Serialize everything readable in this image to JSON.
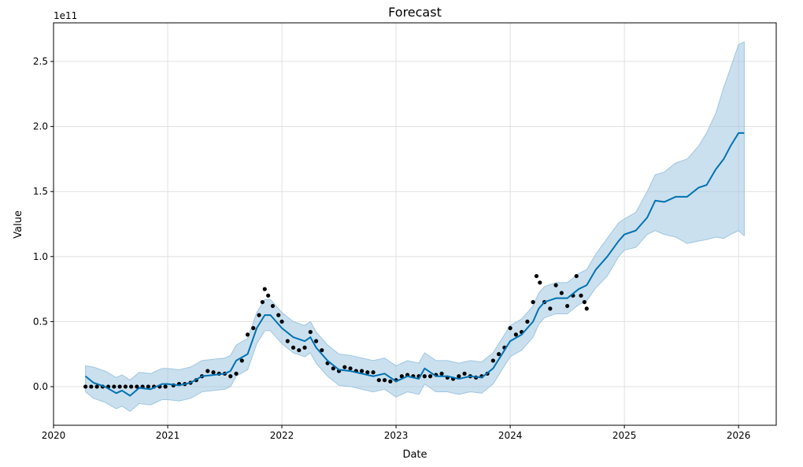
{
  "chart_data": {
    "type": "line",
    "title": "Forecast",
    "xlabel": "Date",
    "ylabel": "Value",
    "y_offset_label": "1e11",
    "y_units_multiplier": 100000000000.0,
    "xlim": [
      2020.0,
      2026.33
    ],
    "ylim": [
      -0.297,
      2.797
    ],
    "x_ticks": [
      "2020",
      "2021",
      "2022",
      "2023",
      "2024",
      "2025",
      "2026"
    ],
    "y_ticks": [
      "0.0",
      "0.5",
      "1.0",
      "1.5",
      "2.0",
      "2.5"
    ],
    "grid": true,
    "colors": {
      "forecast": "#0072b2",
      "band": "#9ec6e0",
      "actual": "#000000",
      "grid": "#e0e0e0"
    },
    "forecast": [
      [
        2020.28,
        0.08,
        -0.04,
        0.16
      ],
      [
        2020.35,
        0.03,
        -0.09,
        0.15
      ],
      [
        2020.45,
        0.0,
        -0.12,
        0.12
      ],
      [
        2020.55,
        -0.05,
        -0.17,
        0.07
      ],
      [
        2020.6,
        -0.03,
        -0.15,
        0.09
      ],
      [
        2020.67,
        -0.07,
        -0.19,
        0.05
      ],
      [
        2020.75,
        -0.01,
        -0.13,
        0.11
      ],
      [
        2020.85,
        -0.02,
        -0.14,
        0.1
      ],
      [
        2020.95,
        0.02,
        -0.1,
        0.14
      ],
      [
        2021.0,
        0.02,
        -0.1,
        0.14
      ],
      [
        2021.1,
        0.01,
        -0.11,
        0.13
      ],
      [
        2021.2,
        0.03,
        -0.09,
        0.15
      ],
      [
        2021.3,
        0.08,
        -0.04,
        0.2
      ],
      [
        2021.4,
        0.09,
        -0.03,
        0.21
      ],
      [
        2021.5,
        0.1,
        -0.02,
        0.22
      ],
      [
        2021.55,
        0.12,
        0.0,
        0.24
      ],
      [
        2021.6,
        0.2,
        0.08,
        0.32
      ],
      [
        2021.7,
        0.25,
        0.13,
        0.37
      ],
      [
        2021.78,
        0.45,
        0.33,
        0.57
      ],
      [
        2021.85,
        0.55,
        0.43,
        0.67
      ],
      [
        2021.9,
        0.55,
        0.43,
        0.67
      ],
      [
        2021.95,
        0.5,
        0.38,
        0.62
      ],
      [
        2022.0,
        0.45,
        0.33,
        0.57
      ],
      [
        2022.1,
        0.38,
        0.26,
        0.5
      ],
      [
        2022.2,
        0.35,
        0.23,
        0.47
      ],
      [
        2022.25,
        0.38,
        0.26,
        0.5
      ],
      [
        2022.3,
        0.3,
        0.18,
        0.42
      ],
      [
        2022.4,
        0.2,
        0.08,
        0.32
      ],
      [
        2022.5,
        0.13,
        0.01,
        0.25
      ],
      [
        2022.6,
        0.12,
        0.0,
        0.24
      ],
      [
        2022.7,
        0.1,
        -0.02,
        0.22
      ],
      [
        2022.8,
        0.08,
        -0.04,
        0.2
      ],
      [
        2022.9,
        0.1,
        -0.02,
        0.22
      ],
      [
        2023.0,
        0.04,
        -0.08,
        0.16
      ],
      [
        2023.1,
        0.08,
        -0.04,
        0.2
      ],
      [
        2023.2,
        0.06,
        -0.06,
        0.18
      ],
      [
        2023.25,
        0.14,
        0.02,
        0.26
      ],
      [
        2023.35,
        0.08,
        -0.04,
        0.2
      ],
      [
        2023.45,
        0.08,
        -0.04,
        0.2
      ],
      [
        2023.55,
        0.06,
        -0.06,
        0.18
      ],
      [
        2023.65,
        0.08,
        -0.04,
        0.2
      ],
      [
        2023.75,
        0.07,
        -0.05,
        0.19
      ],
      [
        2023.85,
        0.14,
        0.02,
        0.26
      ],
      [
        2023.95,
        0.28,
        0.16,
        0.4
      ],
      [
        2024.0,
        0.35,
        0.23,
        0.47
      ],
      [
        2024.1,
        0.4,
        0.28,
        0.52
      ],
      [
        2024.2,
        0.5,
        0.38,
        0.62
      ],
      [
        2024.25,
        0.6,
        0.48,
        0.72
      ],
      [
        2024.3,
        0.65,
        0.53,
        0.77
      ],
      [
        2024.4,
        0.68,
        0.56,
        0.8
      ],
      [
        2024.5,
        0.68,
        0.56,
        0.8
      ],
      [
        2024.6,
        0.75,
        0.63,
        0.87
      ],
      [
        2024.67,
        0.78,
        0.66,
        0.9
      ],
      [
        2024.75,
        0.9,
        0.76,
        1.02
      ],
      [
        2024.85,
        1.0,
        0.85,
        1.14
      ],
      [
        2024.95,
        1.12,
        1.0,
        1.26
      ],
      [
        2025.0,
        1.17,
        1.05,
        1.29
      ],
      [
        2025.1,
        1.2,
        1.07,
        1.34
      ],
      [
        2025.2,
        1.3,
        1.17,
        1.5
      ],
      [
        2025.27,
        1.43,
        1.2,
        1.63
      ],
      [
        2025.35,
        1.42,
        1.17,
        1.65
      ],
      [
        2025.45,
        1.46,
        1.15,
        1.72
      ],
      [
        2025.55,
        1.46,
        1.1,
        1.75
      ],
      [
        2025.65,
        1.53,
        1.12,
        1.85
      ],
      [
        2025.72,
        1.55,
        1.13,
        1.95
      ],
      [
        2025.8,
        1.67,
        1.15,
        2.1
      ],
      [
        2025.87,
        1.75,
        1.14,
        2.3
      ],
      [
        2025.93,
        1.85,
        1.17,
        2.45
      ],
      [
        2026.0,
        1.95,
        1.2,
        2.63
      ],
      [
        2026.05,
        1.95,
        1.16,
        2.65
      ]
    ],
    "actual": [
      [
        2020.28,
        0.0
      ],
      [
        2020.33,
        0.0
      ],
      [
        2020.38,
        0.0
      ],
      [
        2020.43,
        0.0
      ],
      [
        2020.48,
        0.0
      ],
      [
        2020.53,
        0.0
      ],
      [
        2020.58,
        0.0
      ],
      [
        2020.63,
        0.0
      ],
      [
        2020.68,
        0.0
      ],
      [
        2020.73,
        0.0
      ],
      [
        2020.78,
        0.0
      ],
      [
        2020.83,
        0.0
      ],
      [
        2020.88,
        0.0
      ],
      [
        2020.93,
        0.0
      ],
      [
        2020.98,
        0.0
      ],
      [
        2021.05,
        0.01
      ],
      [
        2021.1,
        0.02
      ],
      [
        2021.15,
        0.02
      ],
      [
        2021.2,
        0.03
      ],
      [
        2021.25,
        0.05
      ],
      [
        2021.3,
        0.08
      ],
      [
        2021.35,
        0.12
      ],
      [
        2021.4,
        0.11
      ],
      [
        2021.45,
        0.1
      ],
      [
        2021.5,
        0.1
      ],
      [
        2021.55,
        0.08
      ],
      [
        2021.6,
        0.1
      ],
      [
        2021.65,
        0.2
      ],
      [
        2021.7,
        0.4
      ],
      [
        2021.75,
        0.45
      ],
      [
        2021.8,
        0.55
      ],
      [
        2021.83,
        0.65
      ],
      [
        2021.85,
        0.75
      ],
      [
        2021.88,
        0.7
      ],
      [
        2021.92,
        0.62
      ],
      [
        2021.97,
        0.55
      ],
      [
        2022.0,
        0.5
      ],
      [
        2022.05,
        0.35
      ],
      [
        2022.1,
        0.3
      ],
      [
        2022.15,
        0.28
      ],
      [
        2022.2,
        0.3
      ],
      [
        2022.25,
        0.42
      ],
      [
        2022.3,
        0.35
      ],
      [
        2022.35,
        0.28
      ],
      [
        2022.4,
        0.18
      ],
      [
        2022.45,
        0.14
      ],
      [
        2022.5,
        0.12
      ],
      [
        2022.55,
        0.15
      ],
      [
        2022.6,
        0.14
      ],
      [
        2022.65,
        0.12
      ],
      [
        2022.7,
        0.12
      ],
      [
        2022.75,
        0.11
      ],
      [
        2022.8,
        0.11
      ],
      [
        2022.85,
        0.05
      ],
      [
        2022.9,
        0.05
      ],
      [
        2022.95,
        0.04
      ],
      [
        2023.0,
        0.05
      ],
      [
        2023.05,
        0.08
      ],
      [
        2023.1,
        0.09
      ],
      [
        2023.15,
        0.08
      ],
      [
        2023.2,
        0.08
      ],
      [
        2023.25,
        0.08
      ],
      [
        2023.3,
        0.08
      ],
      [
        2023.35,
        0.09
      ],
      [
        2023.4,
        0.1
      ],
      [
        2023.45,
        0.07
      ],
      [
        2023.5,
        0.06
      ],
      [
        2023.55,
        0.08
      ],
      [
        2023.6,
        0.1
      ],
      [
        2023.65,
        0.08
      ],
      [
        2023.7,
        0.07
      ],
      [
        2023.75,
        0.08
      ],
      [
        2023.8,
        0.1
      ],
      [
        2023.85,
        0.2
      ],
      [
        2023.9,
        0.25
      ],
      [
        2023.95,
        0.3
      ],
      [
        2024.0,
        0.45
      ],
      [
        2024.05,
        0.4
      ],
      [
        2024.1,
        0.42
      ],
      [
        2024.15,
        0.5
      ],
      [
        2024.2,
        0.65
      ],
      [
        2024.23,
        0.85
      ],
      [
        2024.26,
        0.8
      ],
      [
        2024.3,
        0.65
      ],
      [
        2024.35,
        0.6
      ],
      [
        2024.4,
        0.78
      ],
      [
        2024.45,
        0.72
      ],
      [
        2024.5,
        0.62
      ],
      [
        2024.55,
        0.7
      ],
      [
        2024.58,
        0.85
      ],
      [
        2024.62,
        0.7
      ],
      [
        2024.65,
        0.65
      ],
      [
        2024.67,
        0.6
      ]
    ]
  }
}
